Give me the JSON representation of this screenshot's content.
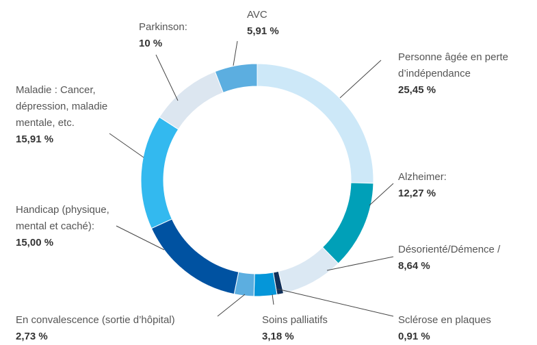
{
  "chart_data": {
    "type": "donut",
    "categories": [
      "Personne âgée en perte d’indépendance",
      "Alzheimer:",
      "Désorienté/Démence /",
      "Sclérose en plaques",
      "Soins palliatifs",
      "En convalescence (sortie d’hôpital)",
      "Handicap (physique, mental et caché):",
      "Maladie : Cancer, dépression, maladie mentale, etc.",
      "Parkinson:",
      "AVC"
    ],
    "values": [
      25.45,
      12.27,
      8.64,
      0.91,
      3.18,
      2.73,
      15.0,
      15.91,
      10,
      5.91
    ],
    "value_labels": [
      "25,45 %",
      "12,27 %",
      "8,64 %",
      "0,91 %",
      "3,18 %",
      "2,73 %",
      "15,00 %",
      "15,91 %",
      "10 %",
      "5,91 %"
    ],
    "colors": [
      "#cde8f8",
      "#00a0b8",
      "#dbe8f3",
      "#10305a",
      "#0596d9",
      "#5caee0",
      "#0052a1",
      "#33b9ef",
      "#dce6f0",
      "#5caee0"
    ]
  }
}
